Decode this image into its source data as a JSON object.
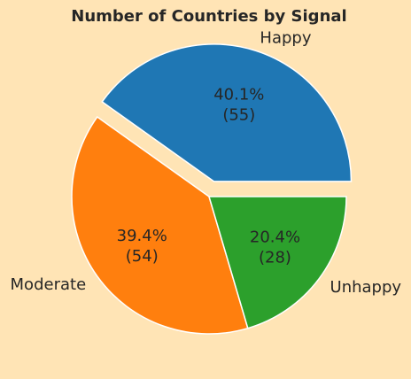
{
  "chart_data": {
    "type": "pie",
    "title": "Number of Countries by Signal",
    "slices": [
      {
        "label": "Happy",
        "value": 55,
        "percent_label": "40.1%",
        "count_label": "(55)",
        "color": "#1F77B4",
        "exploded": true
      },
      {
        "label": "Moderate",
        "value": 54,
        "percent_label": "39.4%",
        "count_label": "(54)",
        "color": "#FF7F0E",
        "exploded": false
      },
      {
        "label": "Unhappy",
        "value": 28,
        "percent_label": "20.4%",
        "count_label": "(28)",
        "color": "#2CA02C",
        "exploded": false
      }
    ],
    "background": "#FFE4B5",
    "edge_color": "#FFFFFF"
  }
}
